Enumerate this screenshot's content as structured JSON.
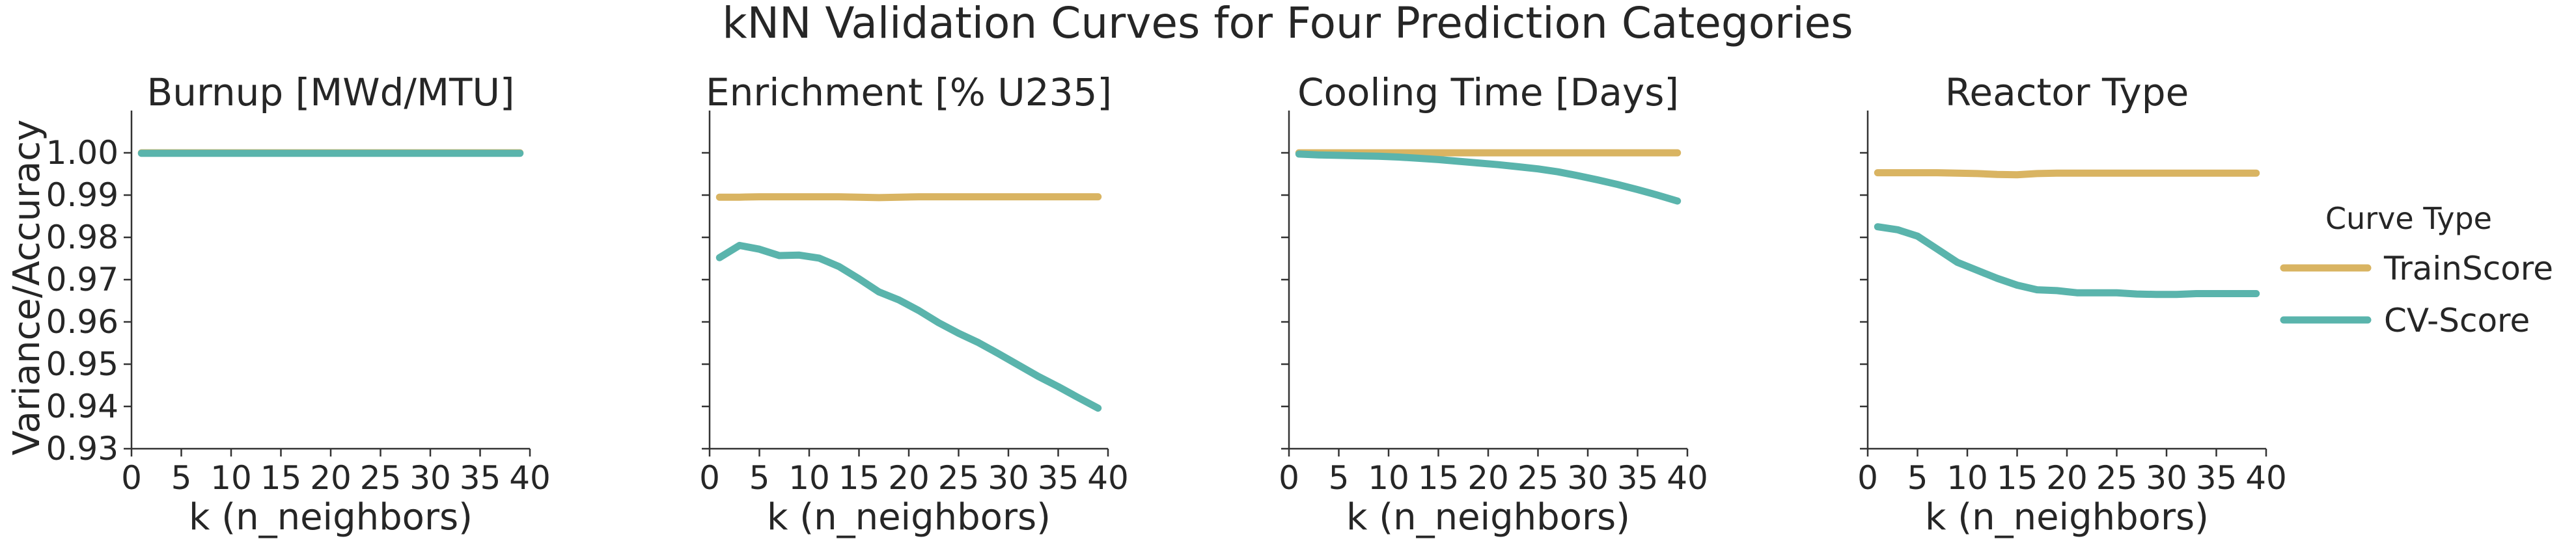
{
  "figure": {
    "suptitle": "kNN Validation Curves for Four Prediction Categories",
    "ylabel": "Variance/Accuracy",
    "colors": {
      "TrainScore": "#d9b462",
      "CV-Score": "#5ab4ac"
    }
  },
  "legend": {
    "title": "Curve Type",
    "items": [
      {
        "label": "TrainScore",
        "color": "#d9b462"
      },
      {
        "label": "CV-Score",
        "color": "#5ab4ac"
      }
    ],
    "placement": "right-center"
  },
  "chart_data": [
    {
      "type": "line",
      "title": "Burnup [MWd/MTU]",
      "xlabel": "k (n_neighbors)",
      "ylabel": "Variance/Accuracy",
      "xlim": [
        0,
        40
      ],
      "ylim": [
        0.93,
        1.01
      ],
      "xticks": [
        "0",
        "5",
        "10",
        "15",
        "20",
        "25",
        "30",
        "35",
        "40"
      ],
      "yticks": [
        "0.93",
        "0.94",
        "0.95",
        "0.96",
        "0.97",
        "0.98",
        "0.99",
        "1.00"
      ],
      "grid": false,
      "x": [
        1,
        3,
        5,
        7,
        9,
        11,
        13,
        15,
        17,
        19,
        21,
        23,
        25,
        27,
        29,
        31,
        33,
        35,
        37,
        39
      ],
      "series": [
        {
          "name": "TrainScore",
          "values": [
            1.0,
            1.0,
            1.0,
            1.0,
            1.0,
            1.0,
            1.0,
            1.0,
            1.0,
            1.0,
            1.0,
            1.0,
            1.0,
            1.0,
            1.0,
            1.0,
            1.0,
            1.0,
            1.0,
            1.0
          ]
        },
        {
          "name": "CV-Score",
          "values": [
            0.9999,
            0.9999,
            0.9999,
            0.9999,
            0.9999,
            0.9999,
            0.9999,
            0.9999,
            0.9999,
            0.9999,
            0.9999,
            0.9999,
            0.9999,
            0.9999,
            0.9999,
            0.9999,
            0.9999,
            0.9999,
            0.9999,
            0.9999
          ]
        }
      ]
    },
    {
      "type": "line",
      "title": "Enrichment [% U235]",
      "xlabel": "k (n_neighbors)",
      "ylabel": "Variance/Accuracy",
      "xlim": [
        0,
        40
      ],
      "ylim": [
        0.93,
        1.01
      ],
      "xticks": [
        "0",
        "5",
        "10",
        "15",
        "20",
        "25",
        "30",
        "35",
        "40"
      ],
      "yticks": [
        "0.93",
        "0.94",
        "0.95",
        "0.96",
        "0.97",
        "0.98",
        "0.99",
        "1.00"
      ],
      "grid": false,
      "x": [
        1,
        3,
        5,
        7,
        9,
        11,
        13,
        15,
        17,
        19,
        21,
        23,
        25,
        27,
        29,
        31,
        33,
        35,
        37,
        39
      ],
      "series": [
        {
          "name": "TrainScore",
          "values": [
            0.9895,
            0.9895,
            0.9896,
            0.9896,
            0.9896,
            0.9896,
            0.9896,
            0.9895,
            0.9894,
            0.9895,
            0.9896,
            0.9896,
            0.9896,
            0.9896,
            0.9896,
            0.9896,
            0.9896,
            0.9896,
            0.9896,
            0.9896
          ]
        },
        {
          "name": "CV-Score",
          "values": [
            0.9752,
            0.9781,
            0.9772,
            0.9757,
            0.9758,
            0.9751,
            0.9731,
            0.9702,
            0.9671,
            0.9652,
            0.9627,
            0.9598,
            0.9573,
            0.9551,
            0.9525,
            0.9498,
            0.9471,
            0.9447,
            0.9421,
            0.9396
          ]
        }
      ]
    },
    {
      "type": "line",
      "title": "Cooling Time [Days]",
      "xlabel": "k (n_neighbors)",
      "ylabel": "Variance/Accuracy",
      "xlim": [
        0,
        40
      ],
      "ylim": [
        0.93,
        1.01
      ],
      "xticks": [
        "0",
        "5",
        "10",
        "15",
        "20",
        "25",
        "30",
        "35",
        "40"
      ],
      "yticks": [
        "0.93",
        "0.94",
        "0.95",
        "0.96",
        "0.97",
        "0.98",
        "0.99",
        "1.00"
      ],
      "grid": false,
      "x": [
        1,
        3,
        5,
        7,
        9,
        11,
        13,
        15,
        17,
        19,
        21,
        23,
        25,
        27,
        29,
        31,
        33,
        35,
        37,
        39
      ],
      "series": [
        {
          "name": "TrainScore",
          "values": [
            1.0,
            1.0,
            1.0,
            1.0,
            1.0,
            1.0,
            1.0,
            1.0,
            1.0,
            1.0,
            1.0,
            1.0,
            1.0,
            1.0,
            1.0,
            1.0,
            1.0,
            1.0,
            1.0,
            1.0
          ]
        },
        {
          "name": "CV-Score",
          "values": [
            0.9997,
            0.9995,
            0.9994,
            0.9993,
            0.9992,
            0.999,
            0.9987,
            0.9984,
            0.998,
            0.9976,
            0.9972,
            0.9967,
            0.9962,
            0.9955,
            0.9946,
            0.9936,
            0.9925,
            0.9913,
            0.99,
            0.9886
          ]
        }
      ]
    },
    {
      "type": "line",
      "title": "Reactor Type",
      "xlabel": "k (n_neighbors)",
      "ylabel": "Variance/Accuracy",
      "xlim": [
        0,
        40
      ],
      "ylim": [
        0.93,
        1.01
      ],
      "xticks": [
        "0",
        "5",
        "10",
        "15",
        "20",
        "25",
        "30",
        "35",
        "40"
      ],
      "yticks": [
        "0.93",
        "0.94",
        "0.95",
        "0.96",
        "0.97",
        "0.98",
        "0.99",
        "1.00"
      ],
      "grid": false,
      "x": [
        1,
        3,
        5,
        7,
        9,
        11,
        13,
        15,
        17,
        19,
        21,
        23,
        25,
        27,
        29,
        31,
        33,
        35,
        37,
        39
      ],
      "series": [
        {
          "name": "TrainScore",
          "values": [
            0.9953,
            0.9953,
            0.9953,
            0.9953,
            0.9952,
            0.9951,
            0.9949,
            0.9948,
            0.9951,
            0.9952,
            0.9952,
            0.9952,
            0.9952,
            0.9952,
            0.9952,
            0.9952,
            0.9952,
            0.9952,
            0.9952,
            0.9952
          ]
        },
        {
          "name": "CV-Score",
          "values": [
            0.9825,
            0.9818,
            0.9803,
            0.9772,
            0.9741,
            0.9722,
            0.9703,
            0.9687,
            0.9676,
            0.9674,
            0.9669,
            0.9669,
            0.9669,
            0.9666,
            0.9665,
            0.9665,
            0.9667,
            0.9667,
            0.9667,
            0.9667
          ]
        }
      ]
    }
  ]
}
